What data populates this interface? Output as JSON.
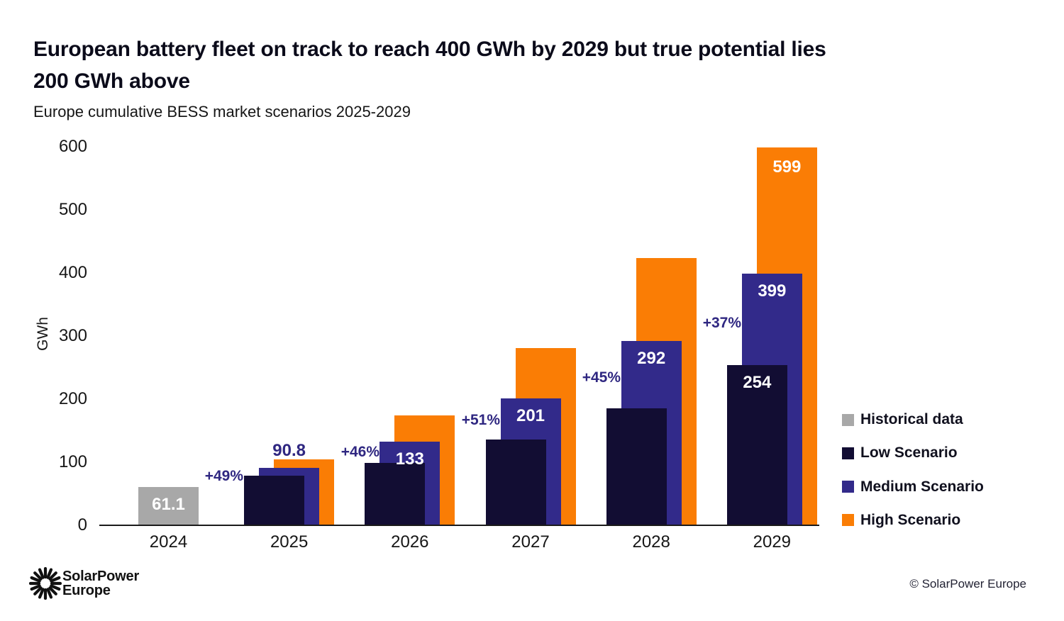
{
  "header": {
    "title_line1": "European battery fleet on track to reach 400 GWh by 2029 but true potential lies",
    "title_line2": "200 GWh above",
    "subtitle": "Europe cumulative BESS market scenarios 2025-2029"
  },
  "chart_data": {
    "type": "bar",
    "title": "European battery fleet on track to reach 400 GWh by 2029 but true potential lies 200 GWh above",
    "subtitle": "Europe cumulative BESS market scenarios 2025-2029",
    "ylabel": "GWh",
    "ylim": [
      0,
      600
    ],
    "yticks": [
      0,
      100,
      200,
      300,
      400,
      500,
      600
    ],
    "grid": false,
    "legend_position": "right",
    "categories": [
      "2024",
      "2025",
      "2026",
      "2027",
      "2028",
      "2029"
    ],
    "series": [
      {
        "name": "Historical data",
        "color": "#a8a8a8",
        "values": [
          61.1,
          null,
          null,
          null,
          null,
          null
        ],
        "labels": [
          "61.1",
          "",
          "",
          "",
          "",
          ""
        ]
      },
      {
        "name": "Low Scenario",
        "color": "#120d33",
        "values": [
          null,
          79,
          99,
          136,
          185,
          254
        ],
        "labels": [
          "",
          "",
          "",
          "",
          "",
          "254"
        ]
      },
      {
        "name": "Medium Scenario",
        "color": "#322a8a",
        "values": [
          null,
          90.8,
          133,
          201,
          292,
          399
        ],
        "labels": [
          "",
          "90.8",
          "133",
          "201",
          "292",
          "399"
        ]
      },
      {
        "name": "High Scenario",
        "color": "#fa7d05",
        "values": [
          null,
          105,
          174,
          281,
          424,
          599
        ],
        "labels": [
          "",
          "",
          "",
          "",
          "",
          "599"
        ]
      }
    ],
    "growth_labels": [
      "+49%",
      "+46%",
      "+51%",
      "+45%",
      "+37%"
    ]
  },
  "legend": {
    "items": [
      {
        "label": "Historical data",
        "color": "#a8a8a8"
      },
      {
        "label": "Low Scenario",
        "color": "#120d33"
      },
      {
        "label": "Medium Scenario",
        "color": "#322a8a"
      },
      {
        "label": "High Scenario",
        "color": "#fa7d05"
      }
    ]
  },
  "footer": {
    "brand_line1": "SolarPower",
    "brand_line2": "Europe",
    "copyright": "© SolarPower Europe"
  },
  "colors": {
    "historical": "#a8a8a8",
    "low": "#120d33",
    "medium": "#322a8a",
    "high": "#fa7d05",
    "accent_text": "#2f2781"
  }
}
